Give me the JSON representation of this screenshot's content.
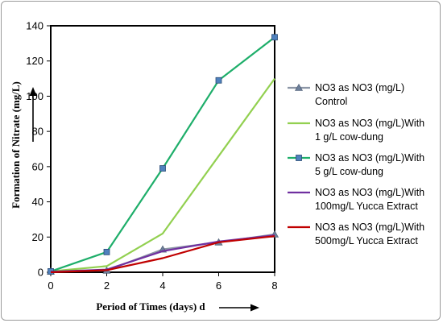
{
  "chart_data": {
    "type": "line",
    "title": "",
    "xlabel": "Period of Times (days) d",
    "ylabel": "Formation of Nitrate  (mg/L)",
    "xlim": [
      0,
      8
    ],
    "ylim": [
      0,
      140
    ],
    "x_ticks": [
      "0",
      "2",
      "4",
      "6",
      "8"
    ],
    "y_ticks": [
      "0",
      "20",
      "40",
      "60",
      "80",
      "100",
      "120",
      "140"
    ],
    "grid": false,
    "legend_position": "right",
    "x": [
      0,
      2,
      4,
      6,
      8
    ],
    "series": [
      {
        "name_lines": [
          "NO3 as NO3 (mg/L)",
          "Control"
        ],
        "color": "#8c96a6",
        "marker": "triangle",
        "values": [
          0.5,
          1.0,
          13.0,
          17.0,
          21.5
        ]
      },
      {
        "name_lines": [
          "NO3 as NO3 (mg/L)With",
          "1 g/L cow-dung"
        ],
        "color": "#92d050",
        "marker": "none",
        "values": [
          0.5,
          3.5,
          22.0,
          66.0,
          110.0
        ]
      },
      {
        "name_lines": [
          "NO3 as NO3 (mg/L)With",
          "5 g/L cow-dung"
        ],
        "color": "#1eae6a",
        "marker": "square",
        "values": [
          0.5,
          11.5,
          59.0,
          109.0,
          133.5
        ]
      },
      {
        "name_lines": [
          "NO3 as NO3 (mg/L)With",
          "100mg/L Yucca Extract"
        ],
        "color": "#7030a0",
        "marker": "none",
        "values": [
          0.3,
          1.5,
          12.0,
          17.5,
          21.0
        ]
      },
      {
        "name_lines": [
          "NO3 as NO3 (mg/L)With",
          "500mg/L Yucca Extract"
        ],
        "color": "#c00000",
        "marker": "none",
        "values": [
          0.0,
          1.2,
          8.0,
          17.0,
          20.5
        ]
      }
    ]
  }
}
